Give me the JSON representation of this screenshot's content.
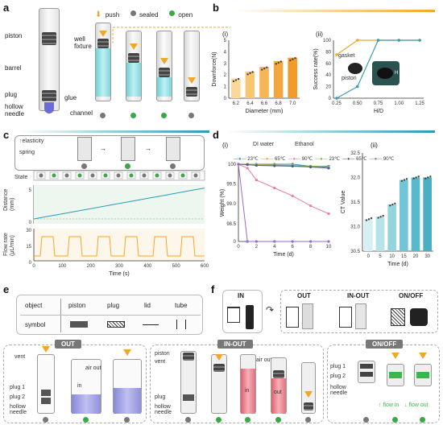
{
  "panels": {
    "a": "a",
    "b": "b",
    "c": "c",
    "d": "d",
    "e": "e",
    "f": "f"
  },
  "legend_a": {
    "push": "push",
    "sealed": "sealed",
    "open": "open"
  },
  "a_labels": {
    "piston": "piston",
    "barrel": "barrel",
    "plug": "plug",
    "glue": "glue",
    "hollow_needle": "hollow\nneedle",
    "well_fixture": "well\nfixture",
    "channel": "channel"
  },
  "b": {
    "sub_i": "(i)",
    "sub_ii": "(ii)",
    "i_ylabel": "Downforce(N)",
    "i_xlabel": "Diameter  (mm)",
    "ii_ylabel": "Success rate(%)",
    "ii_xlabel": "H/D",
    "gasket": "gasket",
    "piston": "piston",
    "D": "D",
    "H": "H"
  },
  "chart_data": [
    {
      "type": "bar",
      "categories": [
        "6.2",
        "6.4",
        "6.6",
        "6.8",
        "7.0"
      ],
      "values": [
        1.7,
        2.3,
        2.7,
        3.2,
        3.5
      ],
      "xlabel": "Diameter  (mm)",
      "ylabel": "Downforce(N)",
      "ylim": [
        0,
        5
      ],
      "yticks": [
        "0",
        "1",
        "2",
        "3",
        "4",
        "5"
      ],
      "colors": [
        "#fbd79a",
        "#f9c774",
        "#f6b656",
        "#f4a63e",
        "#f29a2a"
      ]
    },
    {
      "type": "line",
      "x": [
        0.25,
        0.5,
        0.75,
        1.0,
        1.25
      ],
      "series": [
        {
          "name": "gasket",
          "color": "#f2a72a",
          "values": [
            75,
            100,
            100,
            100,
            100
          ]
        },
        {
          "name": "piston",
          "color": "#3a9fb0",
          "values": [
            0,
            20,
            100,
            100,
            100
          ]
        }
      ],
      "xlabel": "H/D",
      "ylabel": "Success rate(%)",
      "ylim": [
        0,
        100
      ],
      "yticks": [
        "0",
        "20",
        "40",
        "60",
        "80",
        "100"
      ],
      "xticks": [
        "0.25",
        "0.50",
        "0.75",
        "1.00",
        "1.25"
      ]
    },
    {
      "type": "line",
      "x": [
        0,
        1,
        2,
        4,
        6,
        8,
        10
      ],
      "series": [
        {
          "name": "DI water 23℃",
          "color": "#2a9cb4",
          "values": [
            100,
            100,
            100,
            100,
            100,
            99.95,
            99.95
          ]
        },
        {
          "name": "DI water 65℃",
          "color": "#f2a72a",
          "values": [
            100,
            100,
            99.99,
            99.98,
            99.97,
            99.95,
            99.93
          ]
        },
        {
          "name": "DI water 90℃",
          "color": "#e87fa0",
          "values": [
            100,
            99.9,
            99.6,
            99.4,
            99.2,
            98.95,
            98.75
          ]
        },
        {
          "name": "Ethanol 23℃",
          "color": "#7ab84a",
          "values": [
            100,
            99.99,
            99.98,
            99.97,
            99.96,
            99.95,
            99.92
          ]
        },
        {
          "name": "Ethanol 65℃",
          "color": "#4a5f8a",
          "values": [
            100,
            99.99,
            99.97,
            99.96,
            99.95,
            99.93,
            99.9
          ]
        },
        {
          "name": "Ethanol 90℃",
          "color": "#9a6ac8",
          "values": [
            100,
            0,
            0,
            0,
            0,
            0,
            0
          ]
        }
      ],
      "xlabel": "Time (d)",
      "ylabel": "Weight (%)",
      "yticks": [
        "0",
        "98.5",
        "99.0",
        "99.5",
        "100"
      ],
      "xticks": [
        "0",
        "2",
        "4",
        "6",
        "8",
        "10"
      ]
    },
    {
      "type": "bar",
      "categories": [
        "0",
        "5",
        "10",
        "15",
        "20",
        "30"
      ],
      "values": [
        31.15,
        31.2,
        31.45,
        31.95,
        32.0,
        32.0
      ],
      "xlabel": "Time (d)",
      "ylabel": "CT Value",
      "ylim": [
        30.5,
        32.5
      ],
      "yticks": [
        "30.5",
        "31.0",
        "31.5",
        "32.0",
        "32.5"
      ],
      "colors": [
        "#d6eff3",
        "#b6e2ea",
        "#94d4df",
        "#72c5d4",
        "#58b9ca",
        "#48b0c2"
      ]
    }
  ],
  "c": {
    "elasticity": "elasticity",
    "spring": "spring",
    "state": "State",
    "distance_label": "Distance\n(mm)",
    "flow_label": "Flow rate\n(μL/min)",
    "xlabel": "Time (s)",
    "xticks": [
      "0",
      "100",
      "200",
      "300",
      "400",
      "500",
      "600"
    ],
    "d_ticks": [
      "5",
      "0"
    ],
    "f_ticks": [
      "30",
      "15",
      "0"
    ]
  },
  "d_legend": {
    "di": "DI water",
    "eth": "Ethanol",
    "t": [
      "23℃",
      "65℃",
      "90℃",
      "23℃",
      "65℃",
      "90℃"
    ],
    "sub_i": "(i)",
    "sub_ii": "(ii)"
  },
  "e_table": {
    "object": "object",
    "symbol": "symbol",
    "cols": [
      "piston",
      "plug",
      "lid",
      "tube"
    ]
  },
  "f_top": {
    "in": "IN",
    "out": "OUT",
    "inout": "IN-OUT",
    "onoff": "ON/OFF"
  },
  "bottom": {
    "out_title": "OUT",
    "inout_title": "IN-OUT",
    "onoff_title": "ON/OFF",
    "vent": "vent",
    "air_out": "air out",
    "in": "in",
    "plug1": "plug 1",
    "plug2": "plug 2",
    "hollow_needle": "hollow\nneedle",
    "piston": "piston",
    "plug": "plug",
    "out": "out",
    "flow_in": "flow in",
    "flow_out": "flow out"
  }
}
